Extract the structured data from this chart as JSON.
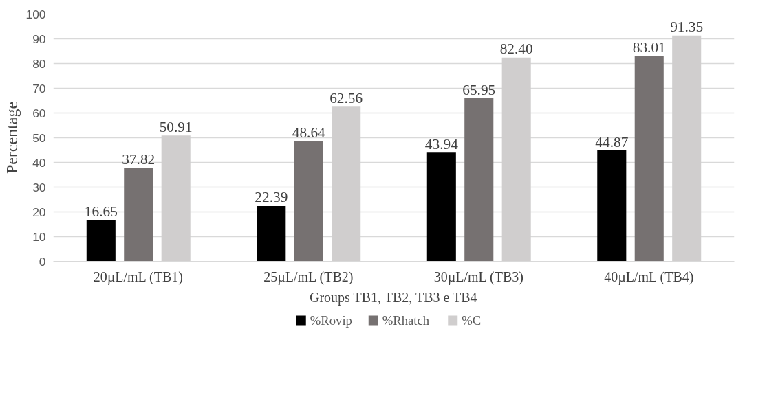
{
  "chart_data": {
    "type": "bar",
    "xlabel": "Groups TB1, TB2, TB3 e TB4",
    "ylabel": "Percentage",
    "categories": [
      "20µL/mL (TB1)",
      "25µL/mL (TB2)",
      "30µL/mL (TB3)",
      "40µL/mL (TB4)"
    ],
    "series": [
      {
        "name": "%Rovip",
        "color": "#000000",
        "values": [
          16.65,
          22.39,
          43.94,
          44.87
        ]
      },
      {
        "name": "%Rhatch",
        "color": "#767171",
        "values": [
          37.82,
          48.64,
          65.95,
          83.01
        ]
      },
      {
        "name": "%C",
        "color": "#d0cece",
        "values": [
          50.91,
          62.56,
          82.4,
          91.35
        ]
      }
    ],
    "value_labels": [
      [
        "16.65",
        "22.39",
        "43.94",
        "44.87"
      ],
      [
        "37.82",
        "48.64",
        "65.95",
        "83.01"
      ],
      [
        "50.91",
        "62.56",
        "82.40",
        "91.35"
      ]
    ],
    "ylim": [
      0,
      100
    ],
    "yticks": [
      0,
      10,
      20,
      30,
      40,
      50,
      60,
      70,
      80,
      90,
      100
    ],
    "grid": "y",
    "legend": "bottom"
  }
}
